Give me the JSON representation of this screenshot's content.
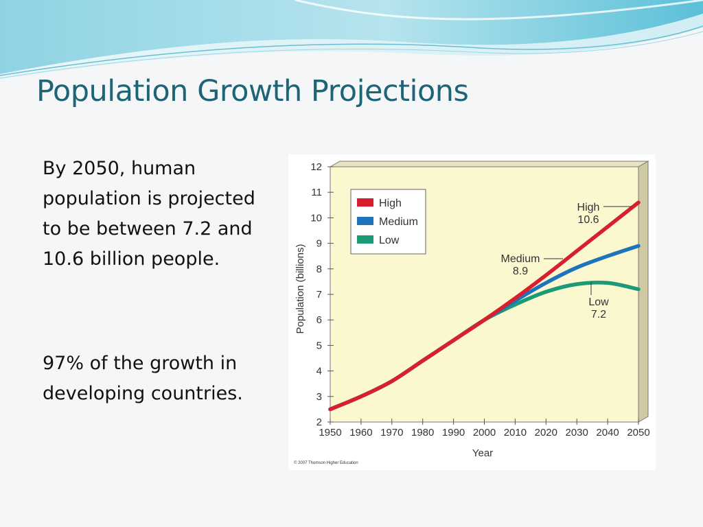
{
  "slide": {
    "title": "Population Growth Projections",
    "paragraphs": [
      "By 2050, human population is projected to be between 7.2 and 10.6 billion people.",
      "97% of the growth in developing countries."
    ]
  },
  "colors": {
    "title": "#1d6477",
    "plot_background": "#fbf7cf",
    "high": "#d71f2e",
    "medium": "#1f73bd",
    "low": "#1c9a78"
  },
  "chart_data": {
    "type": "line",
    "xlabel": "Year",
    "ylabel": "Population (billions)",
    "xlim": [
      1950,
      2050
    ],
    "ylim": [
      2,
      12
    ],
    "x_ticks": [
      "1950",
      "1960",
      "1970",
      "1980",
      "1990",
      "2000",
      "2010",
      "2020",
      "2030",
      "2040",
      "2050"
    ],
    "y_ticks": [
      "2",
      "3",
      "4",
      "5",
      "6",
      "7",
      "8",
      "9",
      "10",
      "11",
      "12"
    ],
    "legend_position": "top-left",
    "grid": false,
    "series": [
      {
        "name": "High",
        "color": "#d71f2e",
        "x": [
          1950,
          1960,
          1970,
          1980,
          1990,
          2000,
          2010,
          2020,
          2030,
          2040,
          2050
        ],
        "y": [
          2.5,
          3.0,
          3.6,
          4.4,
          5.2,
          6.0,
          6.85,
          7.75,
          8.7,
          9.65,
          10.6
        ]
      },
      {
        "name": "Medium",
        "color": "#1f73bd",
        "x": [
          1950,
          1960,
          1970,
          1980,
          1990,
          2000,
          2010,
          2020,
          2030,
          2040,
          2050
        ],
        "y": [
          2.5,
          3.0,
          3.6,
          4.4,
          5.2,
          6.0,
          6.75,
          7.45,
          8.05,
          8.5,
          8.9
        ]
      },
      {
        "name": "Low",
        "color": "#1c9a78",
        "x": [
          1950,
          1960,
          1970,
          1980,
          1990,
          2000,
          2010,
          2020,
          2030,
          2040,
          2050
        ],
        "y": [
          2.5,
          3.0,
          3.6,
          4.4,
          5.2,
          6.0,
          6.6,
          7.1,
          7.4,
          7.45,
          7.2
        ]
      }
    ],
    "annotations": [
      {
        "series": "High",
        "label": "High",
        "value": "10.6"
      },
      {
        "series": "Medium",
        "label": "Medium",
        "value": "8.9"
      },
      {
        "series": "Low",
        "label": "Low",
        "value": "7.2"
      }
    ],
    "copyright": "© 2007 Thomson Higher Education"
  }
}
